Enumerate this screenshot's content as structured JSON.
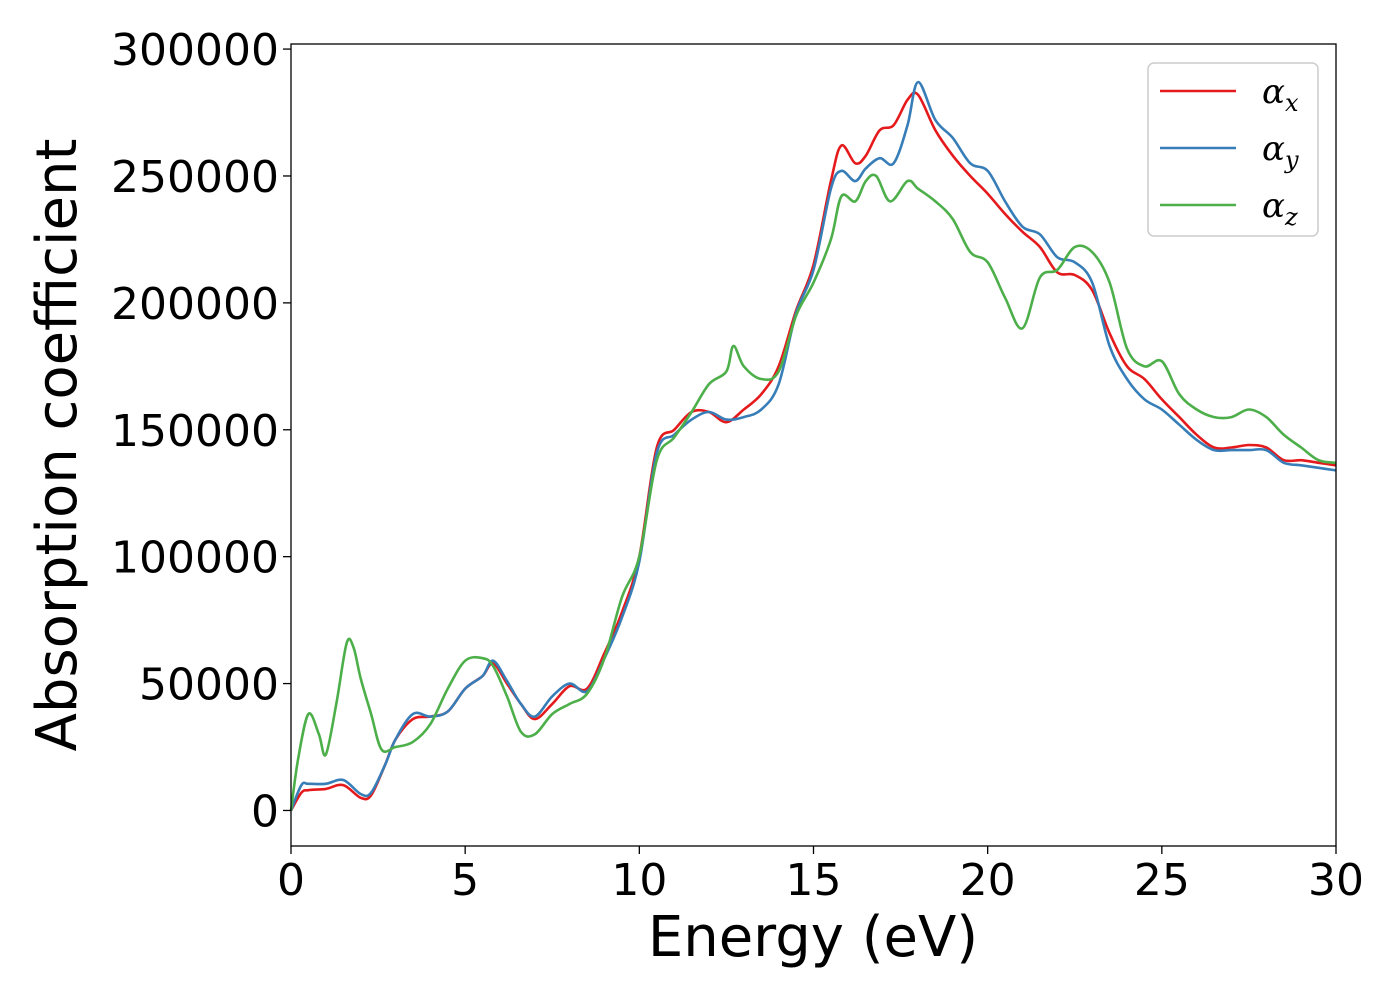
{
  "chart_data": {
    "type": "line",
    "xlabel": "Energy (eV)",
    "ylabel": "Absorption coefficient",
    "xlim": [
      0,
      30
    ],
    "ylim": [
      -14000,
      302000
    ],
    "xticks": [
      0,
      5,
      10,
      15,
      20,
      25,
      30
    ],
    "yticks": [
      0,
      50000,
      100000,
      150000,
      200000,
      250000,
      300000
    ],
    "grid": false,
    "legend_position": "top-right",
    "series": [
      {
        "name": "α_x",
        "symbol": "α",
        "subscript": "x",
        "color": "#e41a1c",
        "points": [
          [
            0,
            0
          ],
          [
            0.3,
            7000
          ],
          [
            0.5,
            8000
          ],
          [
            1.0,
            8500
          ],
          [
            1.5,
            10000
          ],
          [
            2.0,
            5000
          ],
          [
            2.3,
            6000
          ],
          [
            2.7,
            18000
          ],
          [
            3.0,
            28000
          ],
          [
            3.5,
            36000
          ],
          [
            4.0,
            37000
          ],
          [
            4.5,
            39000
          ],
          [
            5.0,
            48000
          ],
          [
            5.5,
            53000
          ],
          [
            5.8,
            58000
          ],
          [
            6.2,
            50000
          ],
          [
            6.6,
            42000
          ],
          [
            7.0,
            36000
          ],
          [
            7.5,
            42000
          ],
          [
            8.0,
            49000
          ],
          [
            8.5,
            48000
          ],
          [
            9.0,
            62000
          ],
          [
            9.5,
            78000
          ],
          [
            10.0,
            100000
          ],
          [
            10.5,
            143000
          ],
          [
            11.0,
            150000
          ],
          [
            11.5,
            157000
          ],
          [
            12.0,
            157000
          ],
          [
            12.5,
            153000
          ],
          [
            13.0,
            158000
          ],
          [
            13.5,
            164000
          ],
          [
            14.0,
            175000
          ],
          [
            14.5,
            197000
          ],
          [
            15.0,
            215000
          ],
          [
            15.5,
            248000
          ],
          [
            15.8,
            262000
          ],
          [
            16.2,
            255000
          ],
          [
            16.5,
            258000
          ],
          [
            16.9,
            268000
          ],
          [
            17.3,
            270000
          ],
          [
            17.7,
            280000
          ],
          [
            18.0,
            282000
          ],
          [
            18.5,
            268000
          ],
          [
            19.0,
            258000
          ],
          [
            19.5,
            250000
          ],
          [
            20.0,
            243000
          ],
          [
            20.5,
            235000
          ],
          [
            21.0,
            228000
          ],
          [
            21.5,
            222000
          ],
          [
            22.0,
            212000
          ],
          [
            22.5,
            211000
          ],
          [
            23.0,
            205000
          ],
          [
            23.5,
            188000
          ],
          [
            24.0,
            175000
          ],
          [
            24.5,
            170000
          ],
          [
            25.0,
            162000
          ],
          [
            25.5,
            155000
          ],
          [
            26.0,
            148000
          ],
          [
            26.5,
            143000
          ],
          [
            27.0,
            143000
          ],
          [
            27.5,
            144000
          ],
          [
            28.0,
            143000
          ],
          [
            28.5,
            138000
          ],
          [
            29.0,
            138000
          ],
          [
            29.5,
            137000
          ],
          [
            30.0,
            136000
          ]
        ]
      },
      {
        "name": "α_y",
        "symbol": "α",
        "subscript": "y",
        "color": "#377eb8",
        "points": [
          [
            0,
            0
          ],
          [
            0.3,
            10000
          ],
          [
            0.5,
            10500
          ],
          [
            1.0,
            10500
          ],
          [
            1.5,
            12000
          ],
          [
            2.0,
            6500
          ],
          [
            2.3,
            7000
          ],
          [
            2.7,
            18000
          ],
          [
            3.0,
            28000
          ],
          [
            3.5,
            38000
          ],
          [
            4.0,
            37000
          ],
          [
            4.5,
            39000
          ],
          [
            5.0,
            48000
          ],
          [
            5.5,
            53000
          ],
          [
            5.8,
            59000
          ],
          [
            6.2,
            51000
          ],
          [
            6.6,
            42000
          ],
          [
            7.0,
            37000
          ],
          [
            7.5,
            45000
          ],
          [
            8.0,
            50000
          ],
          [
            8.5,
            47000
          ],
          [
            9.0,
            60000
          ],
          [
            9.5,
            76000
          ],
          [
            10.0,
            98000
          ],
          [
            10.5,
            141000
          ],
          [
            11.0,
            148000
          ],
          [
            11.5,
            154000
          ],
          [
            12.0,
            157000
          ],
          [
            12.5,
            154000
          ],
          [
            13.0,
            155000
          ],
          [
            13.5,
            158000
          ],
          [
            14.0,
            168000
          ],
          [
            14.5,
            196000
          ],
          [
            15.0,
            213000
          ],
          [
            15.5,
            245000
          ],
          [
            15.8,
            252000
          ],
          [
            16.2,
            248000
          ],
          [
            16.5,
            253000
          ],
          [
            16.9,
            257000
          ],
          [
            17.3,
            255000
          ],
          [
            17.7,
            270000
          ],
          [
            18.0,
            287000
          ],
          [
            18.5,
            272000
          ],
          [
            19.0,
            265000
          ],
          [
            19.5,
            255000
          ],
          [
            20.0,
            252000
          ],
          [
            20.5,
            240000
          ],
          [
            21.0,
            230000
          ],
          [
            21.5,
            227000
          ],
          [
            22.0,
            218000
          ],
          [
            22.5,
            216000
          ],
          [
            23.0,
            208000
          ],
          [
            23.5,
            183000
          ],
          [
            24.0,
            170000
          ],
          [
            24.5,
            162000
          ],
          [
            25.0,
            158000
          ],
          [
            25.5,
            152000
          ],
          [
            26.0,
            146000
          ],
          [
            26.5,
            142000
          ],
          [
            27.0,
            142000
          ],
          [
            27.5,
            142000
          ],
          [
            28.0,
            142000
          ],
          [
            28.5,
            137000
          ],
          [
            29.0,
            136000
          ],
          [
            29.5,
            135000
          ],
          [
            30.0,
            134000
          ]
        ]
      },
      {
        "name": "α_z",
        "symbol": "α",
        "subscript": "z",
        "color": "#4daf4a",
        "points": [
          [
            0,
            0
          ],
          [
            0.2,
            20000
          ],
          [
            0.5,
            38000
          ],
          [
            0.8,
            30000
          ],
          [
            1.0,
            22000
          ],
          [
            1.3,
            42000
          ],
          [
            1.6,
            66000
          ],
          [
            1.8,
            64000
          ],
          [
            2.0,
            52000
          ],
          [
            2.3,
            38000
          ],
          [
            2.6,
            24000
          ],
          [
            3.0,
            25000
          ],
          [
            3.5,
            27000
          ],
          [
            4.0,
            34000
          ],
          [
            4.5,
            48000
          ],
          [
            5.0,
            59000
          ],
          [
            5.5,
            60000
          ],
          [
            5.8,
            57000
          ],
          [
            6.2,
            45000
          ],
          [
            6.6,
            31000
          ],
          [
            7.0,
            30000
          ],
          [
            7.5,
            38000
          ],
          [
            8.0,
            42000
          ],
          [
            8.5,
            46000
          ],
          [
            9.0,
            60000
          ],
          [
            9.5,
            84000
          ],
          [
            10.0,
            100000
          ],
          [
            10.5,
            138000
          ],
          [
            11.0,
            147000
          ],
          [
            11.5,
            157000
          ],
          [
            12.0,
            168000
          ],
          [
            12.5,
            173000
          ],
          [
            12.7,
            183000
          ],
          [
            13.0,
            175000
          ],
          [
            13.5,
            170000
          ],
          [
            14.0,
            173000
          ],
          [
            14.5,
            195000
          ],
          [
            15.0,
            208000
          ],
          [
            15.5,
            225000
          ],
          [
            15.8,
            242000
          ],
          [
            16.2,
            240000
          ],
          [
            16.5,
            248000
          ],
          [
            16.8,
            250000
          ],
          [
            17.2,
            240000
          ],
          [
            17.7,
            248000
          ],
          [
            18.0,
            245000
          ],
          [
            18.5,
            240000
          ],
          [
            19.0,
            233000
          ],
          [
            19.5,
            220000
          ],
          [
            20.0,
            216000
          ],
          [
            20.5,
            202000
          ],
          [
            21.0,
            190000
          ],
          [
            21.5,
            210000
          ],
          [
            22.0,
            213000
          ],
          [
            22.5,
            222000
          ],
          [
            23.0,
            220000
          ],
          [
            23.5,
            208000
          ],
          [
            24.0,
            182000
          ],
          [
            24.5,
            175000
          ],
          [
            25.0,
            177000
          ],
          [
            25.5,
            164000
          ],
          [
            26.0,
            158000
          ],
          [
            26.5,
            155000
          ],
          [
            27.0,
            155000
          ],
          [
            27.5,
            158000
          ],
          [
            28.0,
            155000
          ],
          [
            28.5,
            148000
          ],
          [
            29.0,
            143000
          ],
          [
            29.5,
            138000
          ],
          [
            30.0,
            137000
          ]
        ]
      }
    ]
  }
}
